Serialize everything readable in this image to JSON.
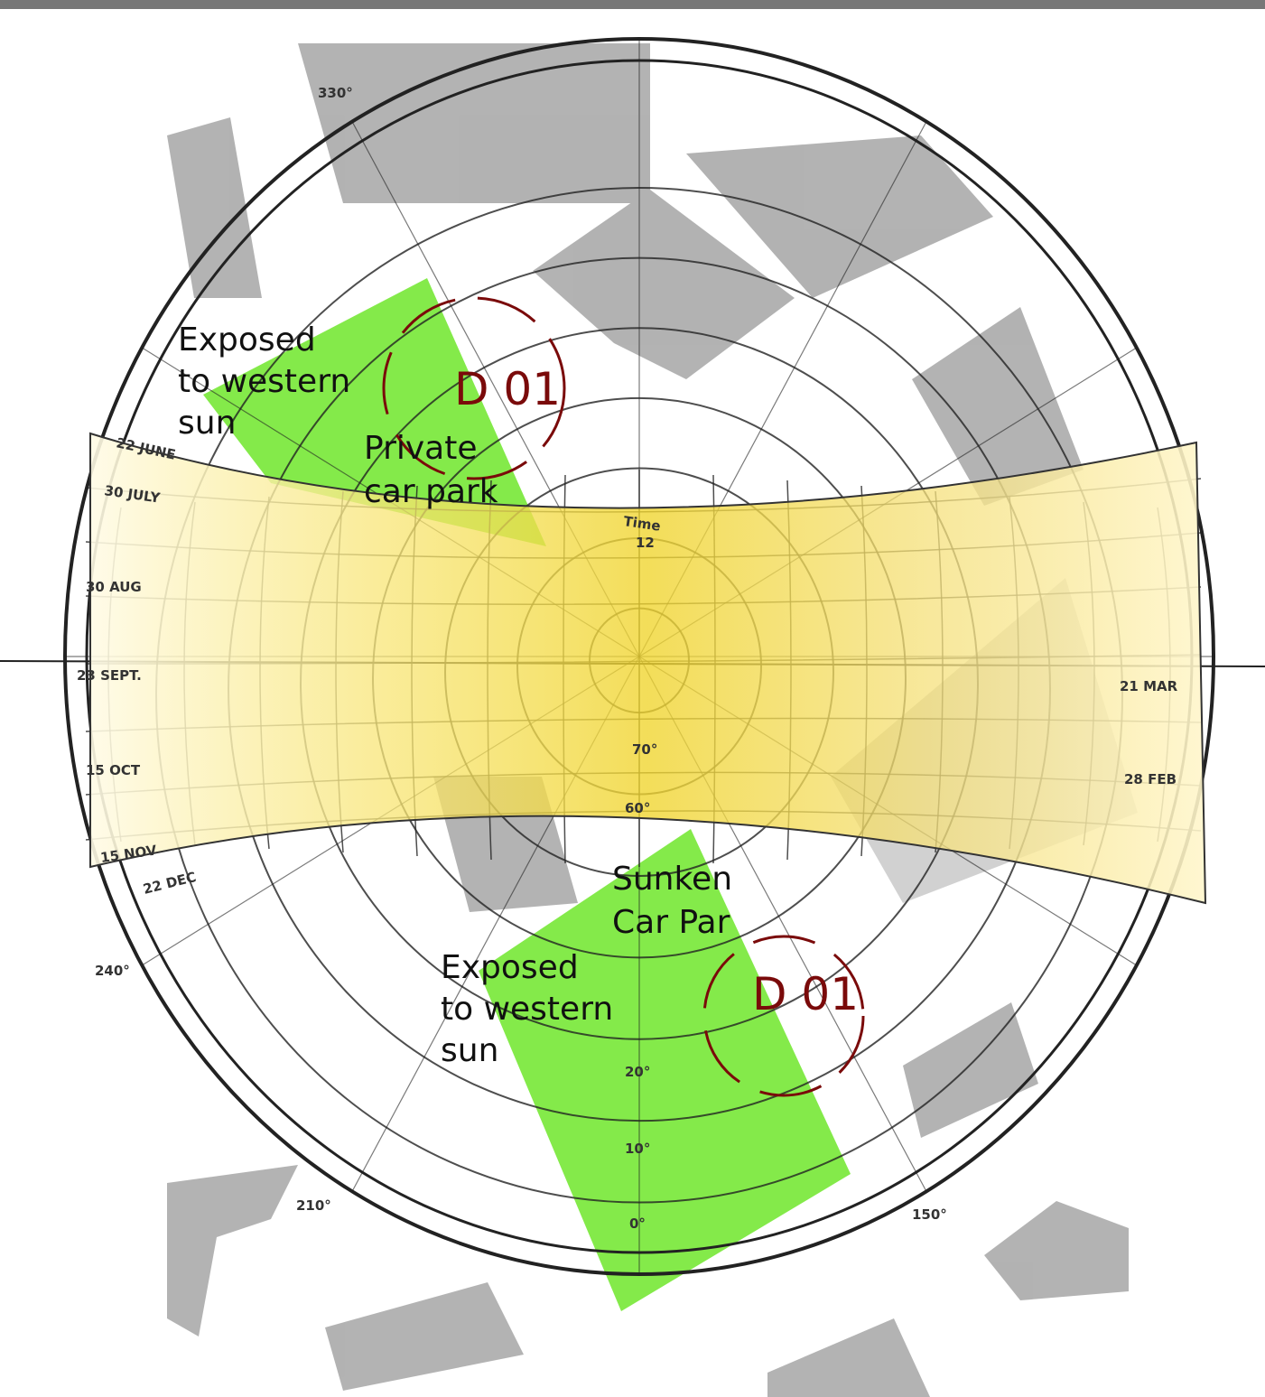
{
  "annotations": {
    "west_exposure_top": [
      "Exposed",
      "to western",
      "sun"
    ],
    "site_top": "D 01",
    "car_park_private": [
      "Private",
      "car park"
    ],
    "car_park_sunken": [
      "Sunken",
      "Car Par"
    ],
    "west_exposure_bottom": [
      "Exposed",
      "to western",
      "sun"
    ],
    "site_bottom": "D 01"
  },
  "sun_path": {
    "dates_left": [
      "22 JUNE",
      "30 JULY",
      "30 AUG",
      "23 SEPT.",
      "15 OCT",
      "15 NOV",
      "22 DEC"
    ],
    "dates_right": [
      "21 MAR",
      "28 FEB"
    ],
    "time_label": "Time",
    "noon": "12"
  },
  "azimuths": [
    "330°",
    "240°",
    "210°",
    "150°"
  ],
  "altitudes": [
    "70°",
    "60°",
    "20°",
    "10°",
    "0°"
  ]
}
